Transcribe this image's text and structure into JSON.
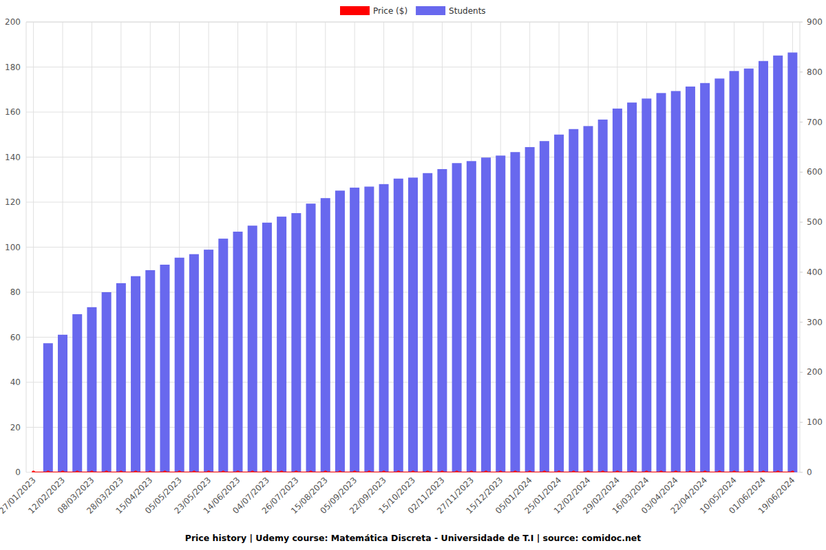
{
  "chart_data": {
    "type": "bar",
    "title": "Price history | Udemy course: Matemática Discreta - Universidade de T.I | source: comidoc.net",
    "categories": [
      "27/01/2023",
      null,
      "12/02/2023",
      null,
      "08/03/2023",
      null,
      "28/03/2023",
      null,
      "15/04/2023",
      null,
      "05/05/2023",
      null,
      "23/05/2023",
      null,
      "14/06/2023",
      null,
      "04/07/2023",
      null,
      "26/07/2023",
      null,
      "15/08/2023",
      null,
      "05/09/2023",
      null,
      "22/09/2023",
      null,
      "15/10/2023",
      null,
      "02/11/2023",
      null,
      "27/11/2023",
      null,
      "15/12/2023",
      null,
      "05/01/2024",
      null,
      "25/01/2024",
      null,
      "12/02/2024",
      null,
      "29/02/2024",
      null,
      "16/03/2024",
      null,
      "03/04/2024",
      null,
      "22/04/2024",
      null,
      "10/05/2024",
      null,
      "01/06/2024",
      null,
      "19/06/2024"
    ],
    "series": [
      {
        "name": "Price ($)",
        "type": "line",
        "color": "#ff0000",
        "marker": "circle",
        "values": [
          0,
          0,
          0,
          0,
          0,
          0,
          0,
          0,
          0,
          0,
          0,
          0,
          0,
          0,
          0,
          0,
          0,
          0,
          0,
          0,
          0,
          0,
          0,
          0,
          0,
          0,
          0,
          0,
          0,
          0,
          0,
          0,
          0,
          0,
          0,
          0,
          0,
          0,
          0,
          0,
          0,
          0,
          0,
          0,
          0,
          0,
          0,
          0,
          0,
          0,
          0,
          0,
          0
        ]
      },
      {
        "name": "Students",
        "type": "bar",
        "color": "#6868ee",
        "axis": "y2",
        "values": [
          null,
          258,
          275,
          316,
          330,
          360,
          378,
          392,
          404,
          415,
          429,
          436,
          445,
          467,
          481,
          493,
          499,
          511,
          518,
          537,
          548,
          563,
          569,
          571,
          576,
          587,
          589,
          598,
          606,
          618,
          622,
          629,
          633,
          640,
          650,
          662,
          675,
          686,
          692,
          705,
          727,
          739,
          747,
          758,
          762,
          771,
          778,
          787,
          802,
          807,
          822,
          833,
          839
        ]
      }
    ],
    "ylim": [
      0,
      200
    ],
    "yticks": [
      0,
      20,
      40,
      60,
      80,
      100,
      120,
      140,
      160,
      180,
      200
    ],
    "y2lim": [
      0,
      900
    ],
    "y2ticks": [
      0,
      100,
      200,
      300,
      400,
      500,
      600,
      700,
      800,
      900
    ],
    "grid": true,
    "legend": "top"
  }
}
